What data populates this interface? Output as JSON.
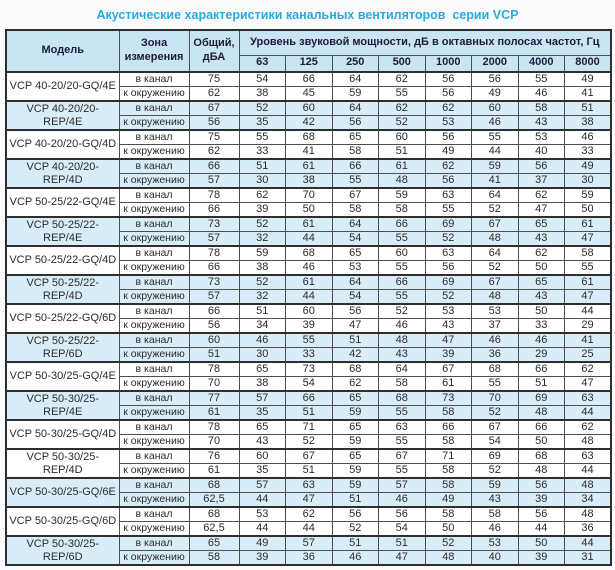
{
  "title": "Акустические характеристики канальных вентиляторов  серии VCP",
  "accent_color": "#2aa9e0",
  "header_bg_color": "#c9e5f4",
  "shaded_row_color": "#d9edf8",
  "table": {
    "headers": {
      "model": "Модель",
      "zone": "Зона\nизмерения",
      "total": "Общий,\nдБА",
      "octave_group": "Уровень звуковой мощности, дБ в октавных полосах частот, Гц",
      "frequencies": [
        "63",
        "125",
        "250",
        "500",
        "1000",
        "2000",
        "4000",
        "8000"
      ]
    },
    "zone_labels": [
      "в канал",
      "к окружению"
    ],
    "rows": [
      {
        "model": "VCP 40-20/20-GQ/4E",
        "shaded": false,
        "in_duct": {
          "total": "75",
          "bands": [
            "54",
            "66",
            "64",
            "62",
            "56",
            "56",
            "55",
            "49"
          ]
        },
        "to_env": {
          "total": "62",
          "bands": [
            "38",
            "45",
            "59",
            "55",
            "56",
            "49",
            "46",
            "41"
          ]
        }
      },
      {
        "model": "VCP 40-20/20-REP/4E",
        "shaded": true,
        "in_duct": {
          "total": "67",
          "bands": [
            "52",
            "60",
            "64",
            "62",
            "62",
            "60",
            "58",
            "51"
          ]
        },
        "to_env": {
          "total": "56",
          "bands": [
            "35",
            "42",
            "56",
            "52",
            "53",
            "46",
            "43",
            "38"
          ]
        }
      },
      {
        "model": "VCP 40-20/20-GQ/4D",
        "shaded": false,
        "in_duct": {
          "total": "75",
          "bands": [
            "55",
            "68",
            "65",
            "60",
            "56",
            "55",
            "53",
            "46"
          ]
        },
        "to_env": {
          "total": "62",
          "bands": [
            "33",
            "41",
            "58",
            "51",
            "49",
            "44",
            "40",
            "33"
          ]
        }
      },
      {
        "model": "VCP 40-20/20-REP/4D",
        "shaded": true,
        "in_duct": {
          "total": "66",
          "bands": [
            "51",
            "61",
            "66",
            "61",
            "62",
            "59",
            "56",
            "49"
          ]
        },
        "to_env": {
          "total": "57",
          "bands": [
            "30",
            "38",
            "55",
            "48",
            "56",
            "41",
            "37",
            "30"
          ]
        }
      },
      {
        "model": "VCP 50-25/22-GQ/4E",
        "shaded": false,
        "in_duct": {
          "total": "78",
          "bands": [
            "62",
            "70",
            "67",
            "59",
            "63",
            "64",
            "62",
            "59"
          ]
        },
        "to_env": {
          "total": "66",
          "bands": [
            "39",
            "50",
            "58",
            "58",
            "55",
            "52",
            "47",
            "50"
          ]
        }
      },
      {
        "model": "VCP 50-25/22-REP/4E",
        "shaded": true,
        "in_duct": {
          "total": "73",
          "bands": [
            "52",
            "61",
            "64",
            "66",
            "69",
            "67",
            "65",
            "61"
          ]
        },
        "to_env": {
          "total": "57",
          "bands": [
            "32",
            "44",
            "54",
            "55",
            "52",
            "48",
            "43",
            "47"
          ]
        }
      },
      {
        "model": "VCP 50-25/22-GQ/4D",
        "shaded": false,
        "in_duct": {
          "total": "78",
          "bands": [
            "59",
            "68",
            "65",
            "60",
            "63",
            "64",
            "62",
            "58"
          ]
        },
        "to_env": {
          "total": "66",
          "bands": [
            "38",
            "46",
            "53",
            "55",
            "56",
            "52",
            "50",
            "55"
          ]
        }
      },
      {
        "model": "VCP 50-25/22-REP/4D",
        "shaded": true,
        "in_duct": {
          "total": "73",
          "bands": [
            "52",
            "61",
            "64",
            "66",
            "69",
            "67",
            "65",
            "61"
          ]
        },
        "to_env": {
          "total": "57",
          "bands": [
            "32",
            "44",
            "54",
            "55",
            "52",
            "48",
            "43",
            "47"
          ]
        }
      },
      {
        "model": "VCP 50-25/22-GQ/6D",
        "shaded": false,
        "in_duct": {
          "total": "66",
          "bands": [
            "51",
            "60",
            "56",
            "52",
            "53",
            "53",
            "50",
            "44"
          ]
        },
        "to_env": {
          "total": "56",
          "bands": [
            "34",
            "39",
            "47",
            "46",
            "43",
            "37",
            "33",
            "29"
          ]
        }
      },
      {
        "model": "VCP 50-25/22-REP/6D",
        "shaded": true,
        "in_duct": {
          "total": "60",
          "bands": [
            "46",
            "55",
            "51",
            "48",
            "47",
            "46",
            "46",
            "41"
          ]
        },
        "to_env": {
          "total": "51",
          "bands": [
            "30",
            "33",
            "42",
            "43",
            "39",
            "36",
            "29",
            "25"
          ]
        }
      },
      {
        "model": "VCP 50-30/25-GQ/4E",
        "shaded": false,
        "in_duct": {
          "total": "78",
          "bands": [
            "65",
            "73",
            "68",
            "64",
            "67",
            "68",
            "66",
            "62"
          ]
        },
        "to_env": {
          "total": "70",
          "bands": [
            "38",
            "54",
            "62",
            "58",
            "61",
            "55",
            "51",
            "47"
          ]
        }
      },
      {
        "model": "VCP 50-30/25-REP/4E",
        "shaded": true,
        "in_duct": {
          "total": "77",
          "bands": [
            "57",
            "66",
            "65",
            "68",
            "73",
            "70",
            "69",
            "63"
          ]
        },
        "to_env": {
          "total": "61",
          "bands": [
            "35",
            "51",
            "59",
            "55",
            "58",
            "52",
            "48",
            "44"
          ]
        }
      },
      {
        "model": "VCP 50-30/25-GQ/4D",
        "shaded": false,
        "in_duct": {
          "total": "78",
          "bands": [
            "65",
            "71",
            "65",
            "63",
            "66",
            "67",
            "66",
            "62"
          ]
        },
        "to_env": {
          "total": "70",
          "bands": [
            "43",
            "52",
            "59",
            "55",
            "58",
            "54",
            "50",
            "48"
          ]
        }
      },
      {
        "model": "VCP 50-30/25-REP/4D",
        "shaded": false,
        "in_duct": {
          "total": "76",
          "bands": [
            "60",
            "67",
            "65",
            "67",
            "71",
            "69",
            "68",
            "63"
          ]
        },
        "to_env": {
          "total": "61",
          "bands": [
            "35",
            "51",
            "59",
            "55",
            "58",
            "52",
            "48",
            "44"
          ]
        }
      },
      {
        "model": "VCP 50-30/25-GQ/6E",
        "shaded": true,
        "in_duct": {
          "total": "68",
          "bands": [
            "57",
            "63",
            "59",
            "57",
            "58",
            "59",
            "56",
            "48"
          ]
        },
        "to_env": {
          "total": "62,5",
          "bands": [
            "44",
            "47",
            "51",
            "46",
            "49",
            "43",
            "39",
            "34"
          ]
        }
      },
      {
        "model": "VCP 50-30/25-GQ/6D",
        "shaded": false,
        "in_duct": {
          "total": "68",
          "bands": [
            "53",
            "62",
            "56",
            "56",
            "58",
            "58",
            "56",
            "48"
          ]
        },
        "to_env": {
          "total": "62,5",
          "bands": [
            "44",
            "44",
            "52",
            "54",
            "50",
            "46",
            "44",
            "36"
          ]
        }
      },
      {
        "model": "VCP 50-30/25-REP/6D",
        "shaded": true,
        "in_duct": {
          "total": "65",
          "bands": [
            "49",
            "57",
            "51",
            "51",
            "52",
            "53",
            "50",
            "44"
          ]
        },
        "to_env": {
          "total": "58",
          "bands": [
            "39",
            "36",
            "46",
            "47",
            "48",
            "40",
            "39",
            "31"
          ]
        }
      }
    ]
  }
}
